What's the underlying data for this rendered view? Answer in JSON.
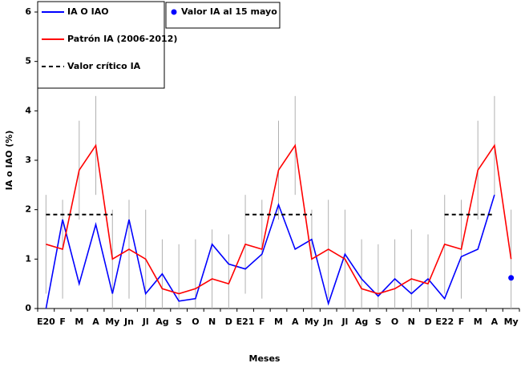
{
  "chart_data": {
    "type": "line",
    "x_label": "Meses",
    "y_label": "IA o IAO (%)",
    "categories": [
      "E20",
      "F",
      "M",
      "A",
      "My",
      "Jn",
      "Jl",
      "Ag",
      "S",
      "O",
      "N",
      "D",
      "E21",
      "F",
      "M",
      "A",
      "My",
      "Jn",
      "Jl",
      "Ag",
      "S",
      "O",
      "N",
      "D",
      "E22",
      "F",
      "M",
      "A",
      "My"
    ],
    "ylim": [
      0,
      6
    ],
    "yticks": [
      0,
      1,
      2,
      3,
      4,
      5,
      6
    ],
    "series": [
      {
        "name": "IA O IAO",
        "color": "#0000ff",
        "style": "solid",
        "values": [
          0,
          1.8,
          0.5,
          1.7,
          0.3,
          1.8,
          0.3,
          0.7,
          0.15,
          0.2,
          1.3,
          0.9,
          0.8,
          1.1,
          2.1,
          1.2,
          1.4,
          0.1,
          1.1,
          0.6,
          0.25,
          0.6,
          0.3,
          0.6,
          0.2,
          1.05,
          1.2,
          2.3,
          null
        ]
      },
      {
        "name": "Patrón IA (2006-2012)",
        "color": "#ff0000",
        "style": "solid",
        "values": [
          1.3,
          1.2,
          2.8,
          3.3,
          1.0,
          1.2,
          1.0,
          0.4,
          0.3,
          0.4,
          0.6,
          0.5,
          1.3,
          1.2,
          2.8,
          3.3,
          1.0,
          1.2,
          1.0,
          0.4,
          0.3,
          0.4,
          0.6,
          0.5,
          1.3,
          1.2,
          2.8,
          3.3,
          1.0
        ],
        "errors": [
          1,
          1,
          1,
          1,
          1,
          1,
          1,
          1,
          1,
          1,
          1,
          1,
          1,
          1,
          1,
          1,
          1,
          1,
          1,
          1,
          1,
          1,
          1,
          1,
          1,
          1,
          1,
          1,
          1
        ],
        "error_color": "#b0b0b0"
      },
      {
        "name": "Valor IA al 15 mayo",
        "color": "#0000ff",
        "style": "dot",
        "values": [
          null,
          null,
          null,
          null,
          null,
          null,
          null,
          null,
          null,
          null,
          null,
          null,
          null,
          null,
          null,
          null,
          null,
          null,
          null,
          null,
          null,
          null,
          null,
          null,
          null,
          null,
          null,
          null,
          0.62
        ]
      },
      {
        "name": "Valor crítico IA",
        "color": "#000000",
        "style": "dashed",
        "values": [
          1.9,
          1.9,
          1.9,
          1.9,
          1.9,
          null,
          null,
          null,
          null,
          null,
          null,
          null,
          1.9,
          1.9,
          1.9,
          1.9,
          1.9,
          null,
          null,
          null,
          null,
          null,
          null,
          null,
          1.9,
          1.9,
          1.9,
          1.9,
          null
        ]
      }
    ]
  }
}
